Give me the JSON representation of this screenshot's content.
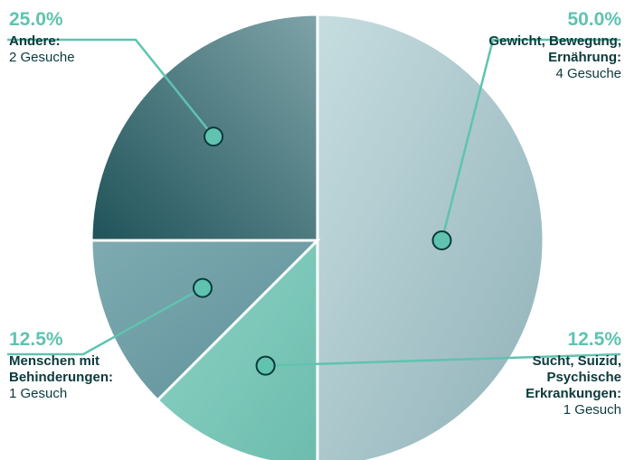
{
  "chart_data": {
    "type": "pie",
    "slices": [
      {
        "label": "Gewicht, Bewegung, Ernährung:",
        "percent_label": "50.0%",
        "count_label": "4 Gesuche",
        "value": 4,
        "color": "#a9c7cc"
      },
      {
        "label": "Sucht, Suizid, Psychische Erkrankungen:",
        "percent_label": "12.5%",
        "count_label": "1 Gesuch",
        "value": 1,
        "color": "#79c7b8"
      },
      {
        "label": "Menschen mit Behinderungen:",
        "percent_label": "12.5%",
        "count_label": "1 Gesuch",
        "value": 1,
        "color": "#6e9fa6"
      },
      {
        "label": "Andere:",
        "percent_label": "25.0%",
        "count_label": "2 Gesuche",
        "value": 2,
        "color": "#2e6268"
      }
    ],
    "accent_color": "#5fc3b0"
  }
}
